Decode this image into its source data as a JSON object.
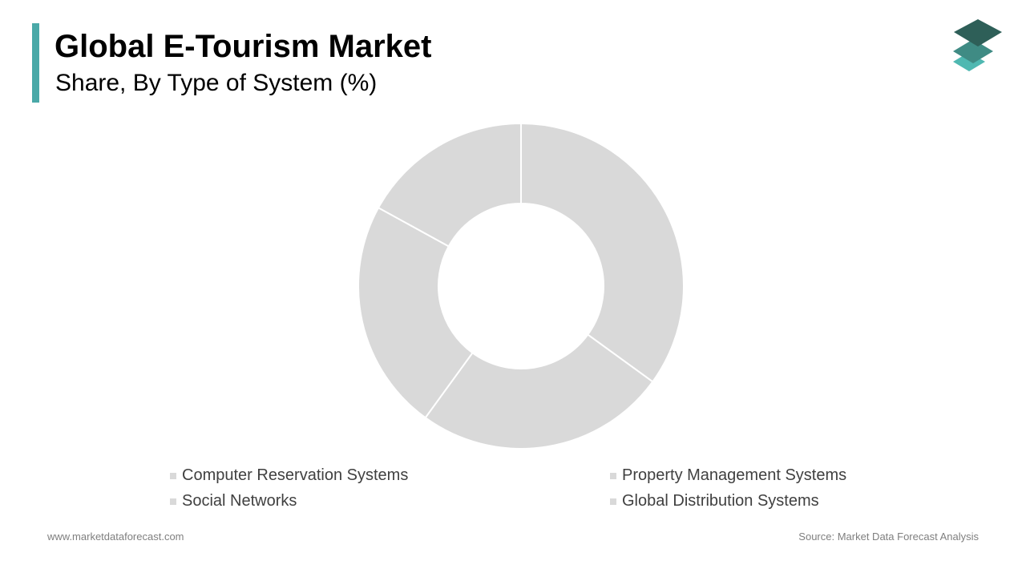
{
  "header": {
    "title": "Global E-Tourism Market",
    "subtitle": "Share, By Type of System (%)"
  },
  "logo": {
    "icon": "stacked-layers-icon"
  },
  "colors": {
    "accent": "#4aa9a8",
    "slice": "#d9d9d9",
    "slice_border": "#ffffff",
    "logo_top": "#2e5f58",
    "logo_mid": "#3f8b84",
    "logo_bottom": "#4fb8b1"
  },
  "chart_data": {
    "type": "pie",
    "donut": true,
    "categories": [
      "Computer Reservation Systems",
      "Property Management Systems",
      "Social Networks",
      "Global Distribution Systems"
    ],
    "values": [
      35,
      25,
      23,
      17
    ],
    "title": "Global E-Tourism Market",
    "subtitle": "Share, By Type of System (%)",
    "legend": "bottom",
    "data_labels": false
  },
  "footer": {
    "website": "www.marketdataforecast.com",
    "source": "Source: Market Data Forecast Analysis"
  }
}
